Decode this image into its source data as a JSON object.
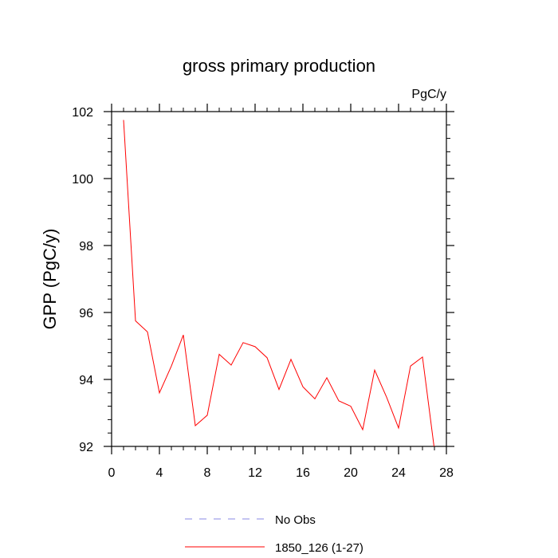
{
  "chart_data": {
    "type": "line",
    "title": "gross primary production",
    "units_label": "PgC/y",
    "xlabel": "",
    "ylabel": "GPP  (PgC/y)",
    "xlim": [
      0,
      28
    ],
    "ylim": [
      92,
      102
    ],
    "x_major_ticks": [
      0,
      4,
      8,
      12,
      16,
      20,
      24,
      28
    ],
    "y_major_ticks": [
      92,
      94,
      96,
      98,
      100,
      102
    ],
    "x_tick_labels": [
      "0",
      "4",
      "8",
      "12",
      "16",
      "20",
      "24",
      "28"
    ],
    "y_tick_labels": [
      "92",
      "94",
      "96",
      "98",
      "100",
      "102"
    ],
    "series": [
      {
        "name": "1850_126 (1-27)",
        "color": "#ff0000",
        "style": "solid",
        "x": [
          1,
          2,
          3,
          4,
          5,
          6,
          7,
          8,
          9,
          10,
          11,
          12,
          13,
          14,
          15,
          16,
          17,
          18,
          19,
          20,
          21,
          22,
          23,
          24,
          25,
          26,
          27
        ],
        "values": [
          101.75,
          95.75,
          95.42,
          93.6,
          94.4,
          95.33,
          92.62,
          92.93,
          94.75,
          94.43,
          95.1,
          94.98,
          94.65,
          93.7,
          94.6,
          93.78,
          93.42,
          94.05,
          93.36,
          93.2,
          92.5,
          94.28,
          93.47,
          92.55,
          94.4,
          94.67,
          91.9
        ]
      }
    ],
    "legend": {
      "placement": "bottom-center",
      "entries": [
        {
          "label": "No Obs",
          "color": "#8a8ae6",
          "style": "dashed"
        },
        {
          "label": "1850_126 (1-27)",
          "color": "#ff0000",
          "style": "solid"
        }
      ]
    }
  }
}
